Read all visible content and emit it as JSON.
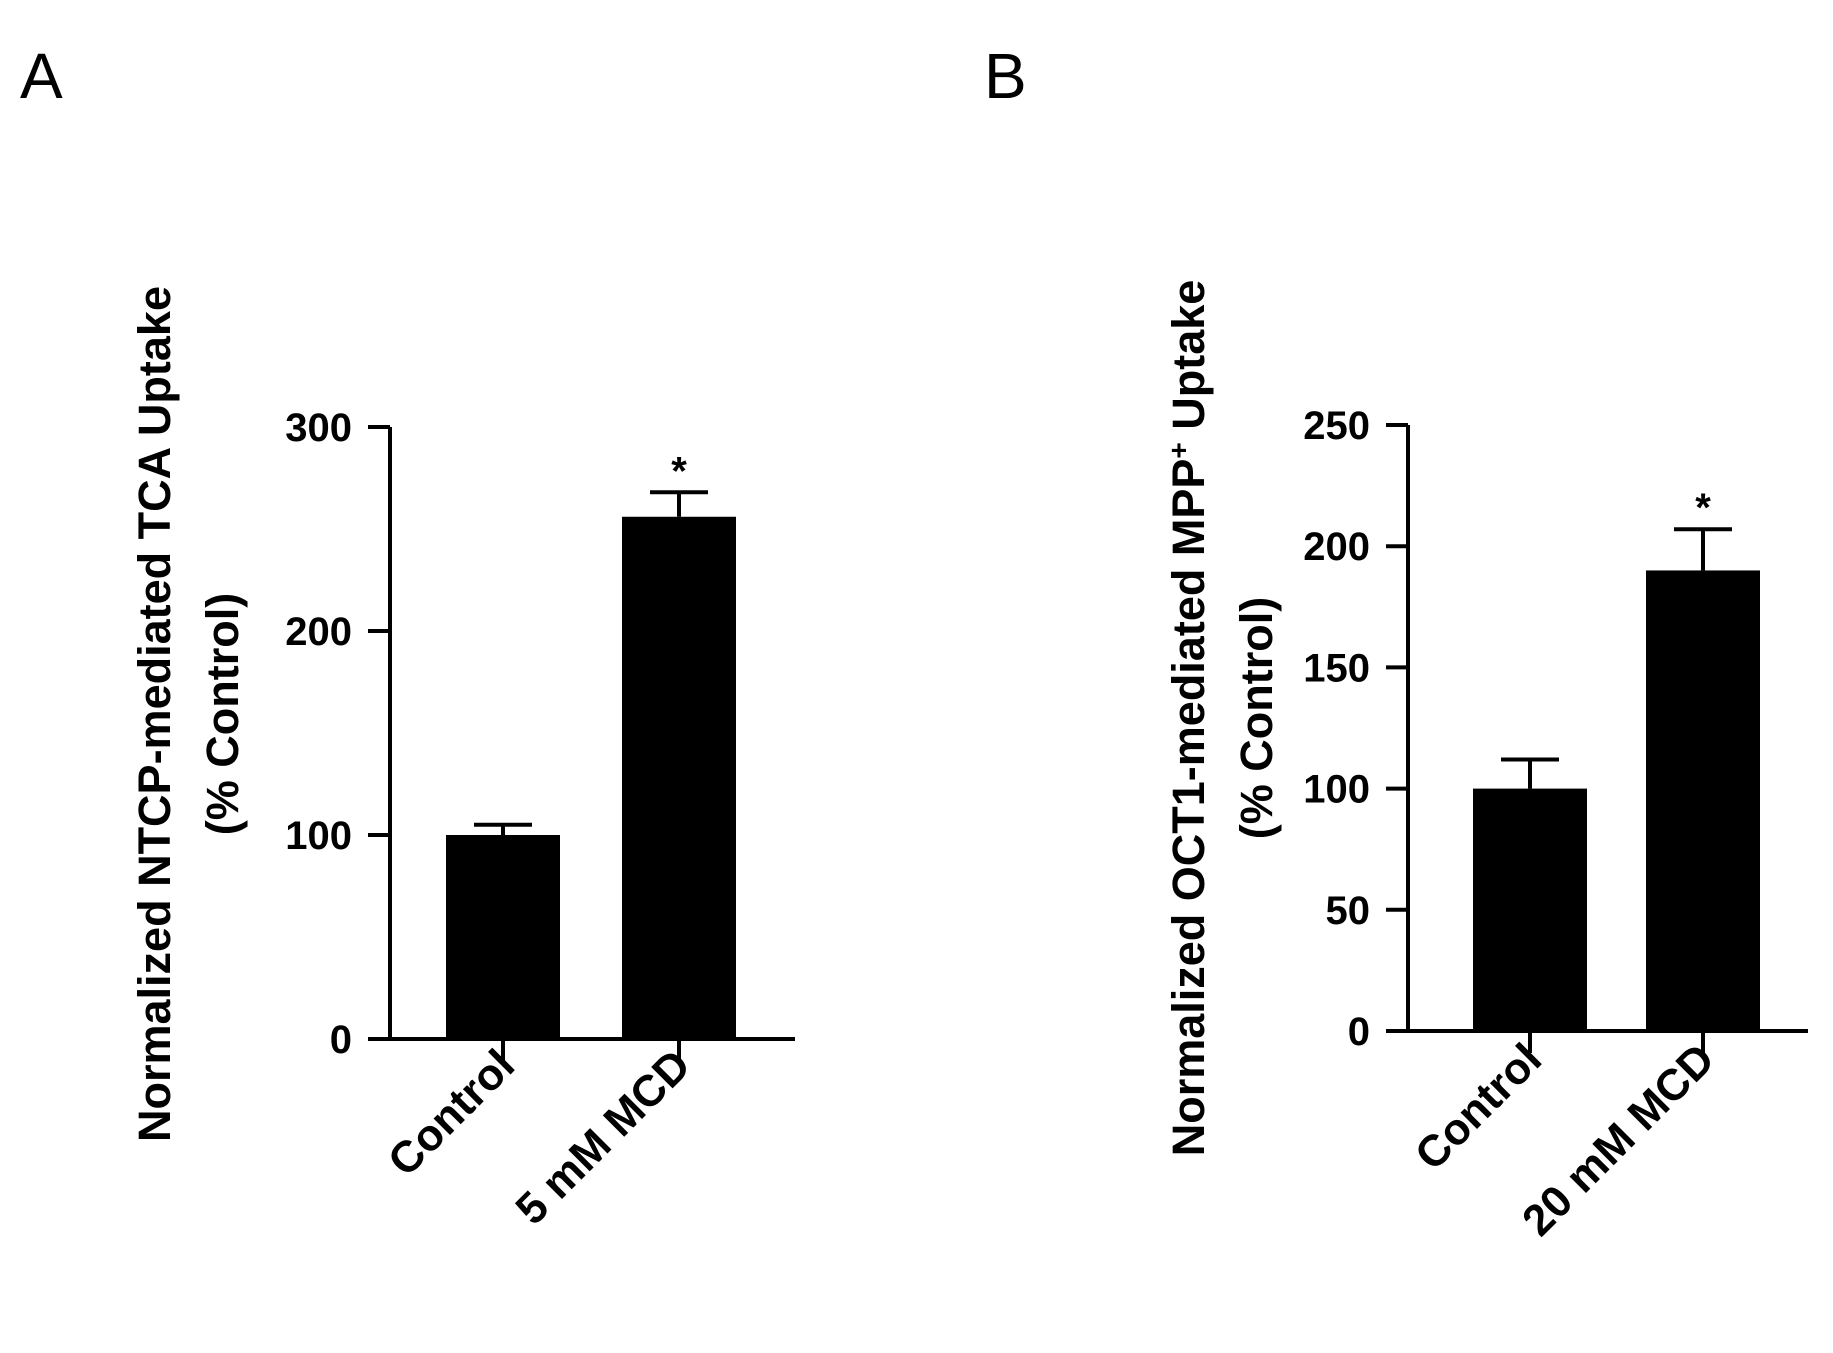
{
  "chart_data": [
    {
      "type": "bar",
      "panel": "A",
      "categories": [
        "Control",
        "5 mM MCD"
      ],
      "values": [
        100,
        256
      ],
      "error": [
        5,
        12
      ],
      "significance": [
        "",
        "*"
      ],
      "ylabel": "Normalized NTCP-mediated TCA Uptake",
      "ylabel2": "(% Control)",
      "ylim": [
        0,
        300
      ],
      "yticks": [
        0,
        100,
        200,
        300
      ],
      "bar_color": "#000000",
      "grid": false
    },
    {
      "type": "bar",
      "panel": "B",
      "categories": [
        "Control",
        "20 mM MCD"
      ],
      "values": [
        100,
        190
      ],
      "error": [
        12,
        17
      ],
      "significance": [
        "",
        "*"
      ],
      "ylabel": "Normalized OCT1-mediated MPP",
      "ylabel_sup": "+",
      "ylabel_tail": " Uptake",
      "ylabel2": "(% Control)",
      "ylim": [
        0,
        250
      ],
      "yticks": [
        0,
        50,
        100,
        150,
        200,
        250
      ],
      "bar_color": "#000000",
      "grid": false
    }
  ]
}
